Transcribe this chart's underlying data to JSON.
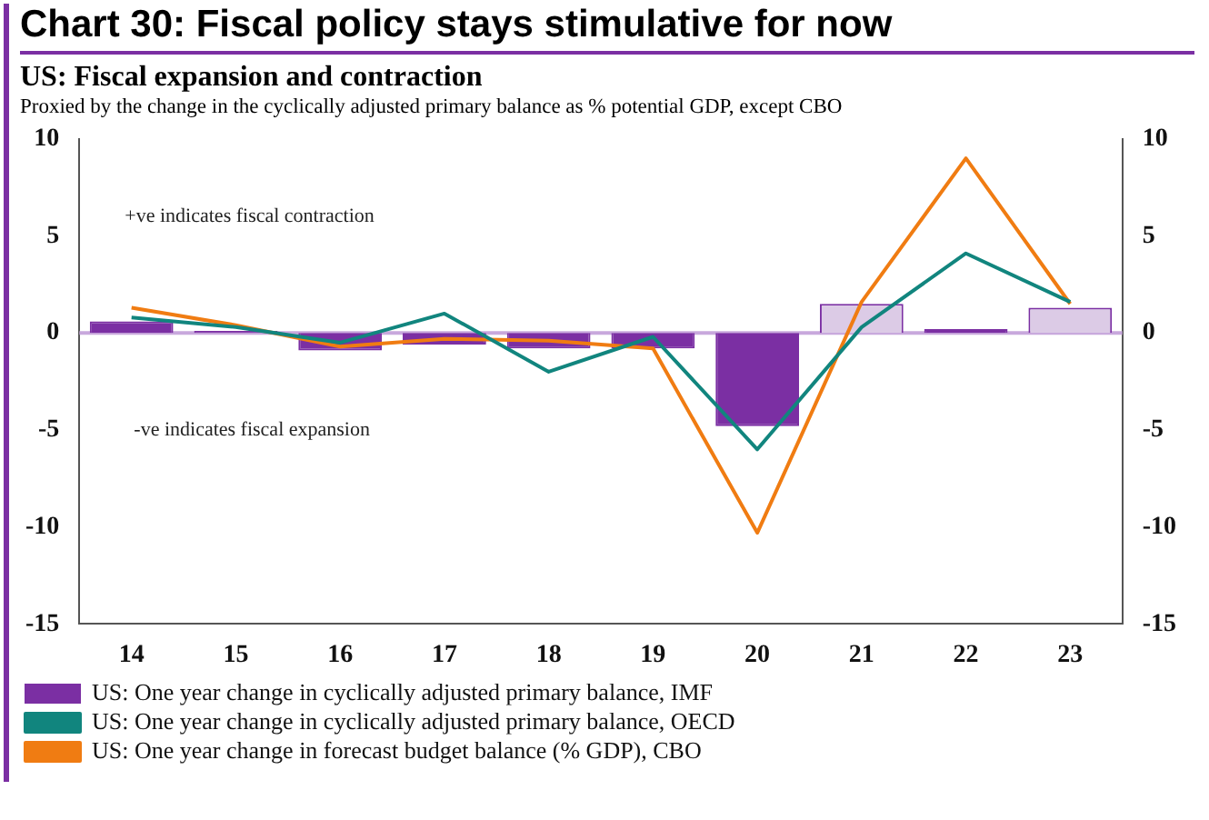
{
  "chart_data": {
    "type": "bar",
    "title": "Chart 30: Fiscal policy stays stimulative for now",
    "subtitle": "US: Fiscal expansion and contraction",
    "annotations": [
      "Proxied by the change in the cyclically adjusted primary balance as % potential GDP, except CBO",
      "+ve indicates fiscal contraction",
      "-ve indicates fiscal expansion"
    ],
    "categories": [
      "14",
      "15",
      "16",
      "17",
      "18",
      "19",
      "20",
      "21",
      "22",
      "23"
    ],
    "series": [
      {
        "name": "US: One year change in cyclically adjusted primary balance, IMF",
        "color": "#7b2fa3",
        "colors": [
          "#7b2fa3",
          "#7b2fa3",
          "#7b2fa3",
          "#7b2fa3",
          "#7b2fa3",
          "#7b2fa3",
          "#7b2fa3",
          "#dccbe6",
          "#7b2fa3",
          "#dccbe6"
        ],
        "values": [
          0.6,
          0.1,
          -0.9,
          -0.6,
          -0.8,
          -0.8,
          -4.8,
          1.5,
          0.2,
          1.3
        ]
      },
      {
        "name": "US: One year change in cyclically adjusted primary balance, OECD",
        "type": "line",
        "color": "#11857e",
        "values": [
          0.8,
          0.3,
          -0.5,
          1.0,
          -2.0,
          -0.2,
          -6.0,
          0.3,
          4.1,
          1.6
        ]
      },
      {
        "name": "US: One year change in forecast budget balance (% GDP), CBO",
        "type": "line",
        "color": "#f07c12",
        "values": [
          1.3,
          0.4,
          -0.7,
          -0.3,
          -0.4,
          -0.8,
          -10.3,
          1.6,
          9.0,
          1.5
        ]
      }
    ],
    "ylim": [
      -15,
      10
    ],
    "yticks": [
      -15,
      -10,
      -5,
      0,
      5,
      10
    ],
    "y2lim": [
      -15,
      10
    ],
    "y2ticks": [
      -15,
      -10,
      -5,
      0,
      5,
      10
    ],
    "ref_lines": [
      {
        "axis": "y",
        "value": 0,
        "color": "#c8a8dc"
      }
    ],
    "grid": false,
    "legend": "bottom",
    "marker": "none"
  }
}
